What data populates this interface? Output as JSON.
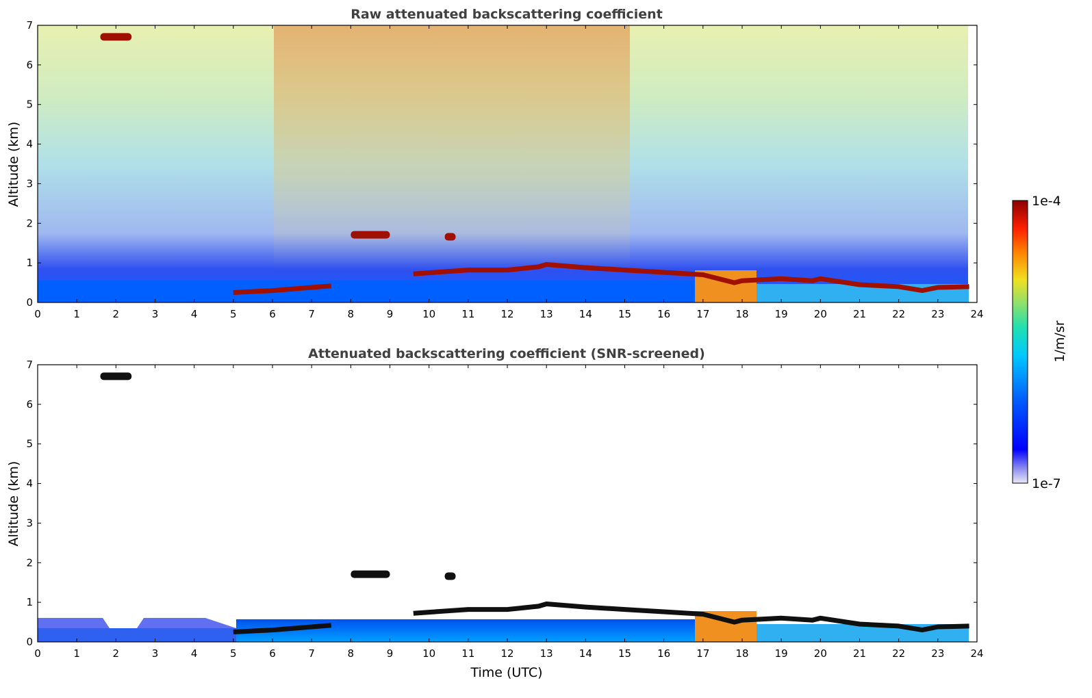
{
  "chart_data": [
    {
      "type": "heatmap",
      "title": "Raw attenuated backscattering coefficient",
      "xlabel": "",
      "ylabel": "Altitude (km)",
      "xlim": [
        0,
        24
      ],
      "ylim": [
        0,
        7
      ],
      "x_ticks": [
        "0",
        "1",
        "2",
        "3",
        "4",
        "5",
        "6",
        "7",
        "8",
        "9",
        "10",
        "11",
        "12",
        "13",
        "14",
        "15",
        "16",
        "17",
        "18",
        "19",
        "20",
        "21",
        "22",
        "23",
        "24"
      ],
      "y_ticks": [
        "0",
        "1",
        "2",
        "3",
        "4",
        "5",
        "6",
        "7"
      ],
      "features": {
        "cloud_top_layer": {
          "time": [
            0.0,
            24.0
          ],
          "altitude_km": 0.0
        },
        "elevated_cloud_1": {
          "time_utc": [
            1.6,
            2.4
          ],
          "altitude_km": 6.7
        },
        "elevated_cloud_2": {
          "time_utc": [
            8.0,
            9.0
          ],
          "altitude_km": 1.7
        },
        "elevated_cloud_3": {
          "time_utc": [
            10.4,
            11.1
          ],
          "altitude_km": 1.65
        },
        "boundary_layer_top": [
          {
            "t": 5.0,
            "h": 0.25
          },
          {
            "t": 6.0,
            "h": 0.3
          },
          {
            "t": 7.0,
            "h": 0.38
          },
          {
            "t": 7.5,
            "h": 0.42
          },
          {
            "t": 9.6,
            "h": 0.72
          },
          {
            "t": 10.0,
            "h": 0.75
          },
          {
            "t": 11.0,
            "h": 0.82
          },
          {
            "t": 12.0,
            "h": 0.82
          },
          {
            "t": 12.8,
            "h": 0.9
          },
          {
            "t": 13.0,
            "h": 0.96
          },
          {
            "t": 14.0,
            "h": 0.88
          },
          {
            "t": 15.0,
            "h": 0.82
          },
          {
            "t": 16.0,
            "h": 0.76
          },
          {
            "t": 17.0,
            "h": 0.7
          },
          {
            "t": 17.8,
            "h": 0.5
          },
          {
            "t": 18.0,
            "h": 0.55
          },
          {
            "t": 19.0,
            "h": 0.6
          },
          {
            "t": 19.8,
            "h": 0.55
          },
          {
            "t": 20.0,
            "h": 0.6
          },
          {
            "t": 21.0,
            "h": 0.45
          },
          {
            "t": 22.0,
            "h": 0.4
          },
          {
            "t": 22.6,
            "h": 0.3
          },
          {
            "t": 23.0,
            "h": 0.38
          },
          {
            "t": 23.8,
            "h": 0.4
          }
        ]
      }
    },
    {
      "type": "heatmap",
      "title": "Attenuated backscattering coefficient (SNR-screened)",
      "xlabel": "Time (UTC)",
      "ylabel": "Altitude (km)",
      "xlim": [
        0,
        24
      ],
      "ylim": [
        0,
        7
      ],
      "x_ticks": [
        "0",
        "1",
        "2",
        "3",
        "4",
        "5",
        "6",
        "7",
        "8",
        "9",
        "10",
        "11",
        "12",
        "13",
        "14",
        "15",
        "16",
        "17",
        "18",
        "19",
        "20",
        "21",
        "22",
        "23",
        "24"
      ],
      "y_ticks": [
        "0",
        "1",
        "2",
        "3",
        "4",
        "5",
        "6",
        "7"
      ]
    }
  ],
  "colorbar": {
    "label": "1/m/sr",
    "max_label": "1e-4",
    "min_label": "1e-7",
    "colors": [
      "#e8e8f8",
      "#b0b0f0",
      "#6060f0",
      "#0000ff",
      "#0050ff",
      "#00a0ff",
      "#00d0e0",
      "#40e0b0",
      "#a0e060",
      "#e0e020",
      "#ffb000",
      "#ff6000",
      "#e01000",
      "#900000"
    ]
  }
}
